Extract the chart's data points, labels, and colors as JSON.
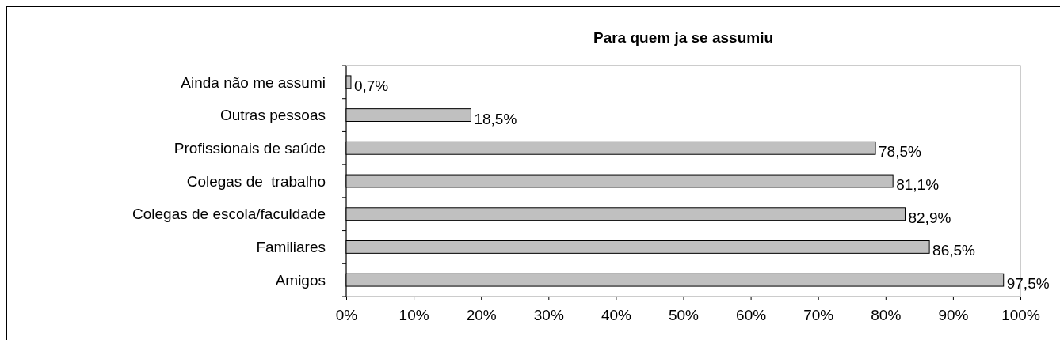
{
  "chart_data": {
    "type": "bar",
    "orientation": "horizontal",
    "title": "Para quem ja se assumiu",
    "categories": [
      "Ainda não me assumi",
      "Outras pessoas",
      "Profissionais de saúde",
      "Colegas de  trabalho",
      "Colegas de escola/faculdade",
      "Familiares",
      "Amigos"
    ],
    "values": [
      0.7,
      18.5,
      78.5,
      81.1,
      82.9,
      86.5,
      97.5
    ],
    "value_labels": [
      "0,7%",
      "18,5%",
      "78,5%",
      "81,1%",
      "82,9%",
      "86,5%",
      "97,5%"
    ],
    "color": "#c0c0c0",
    "xlim": [
      0,
      100
    ],
    "xticks": [
      {
        "value": 0,
        "label": "0%"
      },
      {
        "value": 10,
        "label": "10%"
      },
      {
        "value": 20,
        "label": "20%"
      },
      {
        "value": 30,
        "label": "30%"
      },
      {
        "value": 40,
        "label": "40%"
      },
      {
        "value": 50,
        "label": "50%"
      },
      {
        "value": 60,
        "label": "60%"
      },
      {
        "value": 70,
        "label": "70%"
      },
      {
        "value": 80,
        "label": "80%"
      },
      {
        "value": 90,
        "label": "90%"
      },
      {
        "value": 100,
        "label": "100%"
      }
    ],
    "grid": false
  }
}
